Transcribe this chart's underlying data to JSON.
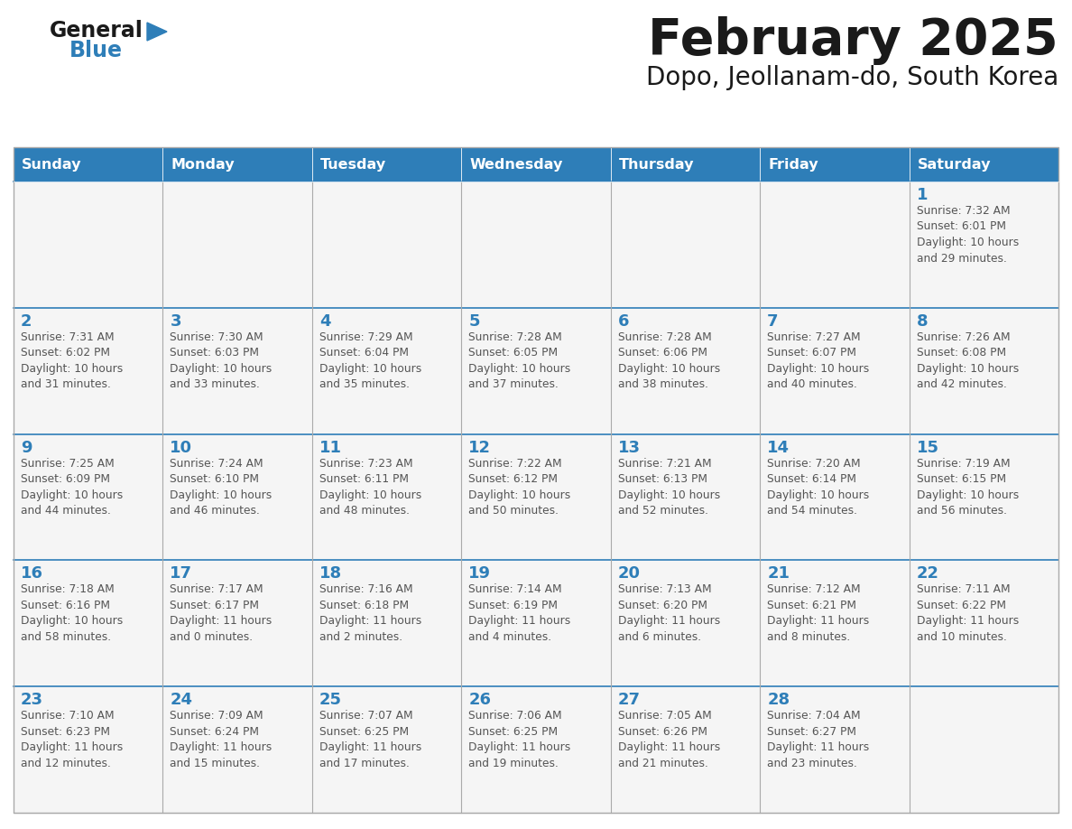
{
  "title": "February 2025",
  "subtitle": "Dopo, Jeollanam-do, South Korea",
  "days_of_week": [
    "Sunday",
    "Monday",
    "Tuesday",
    "Wednesday",
    "Thursday",
    "Friday",
    "Saturday"
  ],
  "header_bg": "#2E7EB8",
  "header_text": "#FFFFFF",
  "cell_bg": "#F5F5F5",
  "cell_bg_row1": "#EBEBEB",
  "border_color": "#AAAAAA",
  "sep_line_color": "#2E7EB8",
  "day_number_color": "#2E7EB8",
  "text_color": "#555555",
  "title_color": "#1A1A1A",
  "logo_text1_color": "#1A1A1A",
  "logo_text2_color": "#2E7EB8",
  "logo_triangle_color": "#2E7EB8",
  "calendar_data": [
    [
      null,
      null,
      null,
      null,
      null,
      null,
      {
        "day": "1",
        "sunrise": "7:32 AM",
        "sunset": "6:01 PM",
        "daylight": "10 hours\nand 29 minutes."
      }
    ],
    [
      {
        "day": "2",
        "sunrise": "7:31 AM",
        "sunset": "6:02 PM",
        "daylight": "10 hours\nand 31 minutes."
      },
      {
        "day": "3",
        "sunrise": "7:30 AM",
        "sunset": "6:03 PM",
        "daylight": "10 hours\nand 33 minutes."
      },
      {
        "day": "4",
        "sunrise": "7:29 AM",
        "sunset": "6:04 PM",
        "daylight": "10 hours\nand 35 minutes."
      },
      {
        "day": "5",
        "sunrise": "7:28 AM",
        "sunset": "6:05 PM",
        "daylight": "10 hours\nand 37 minutes."
      },
      {
        "day": "6",
        "sunrise": "7:28 AM",
        "sunset": "6:06 PM",
        "daylight": "10 hours\nand 38 minutes."
      },
      {
        "day": "7",
        "sunrise": "7:27 AM",
        "sunset": "6:07 PM",
        "daylight": "10 hours\nand 40 minutes."
      },
      {
        "day": "8",
        "sunrise": "7:26 AM",
        "sunset": "6:08 PM",
        "daylight": "10 hours\nand 42 minutes."
      }
    ],
    [
      {
        "day": "9",
        "sunrise": "7:25 AM",
        "sunset": "6:09 PM",
        "daylight": "10 hours\nand 44 minutes."
      },
      {
        "day": "10",
        "sunrise": "7:24 AM",
        "sunset": "6:10 PM",
        "daylight": "10 hours\nand 46 minutes."
      },
      {
        "day": "11",
        "sunrise": "7:23 AM",
        "sunset": "6:11 PM",
        "daylight": "10 hours\nand 48 minutes."
      },
      {
        "day": "12",
        "sunrise": "7:22 AM",
        "sunset": "6:12 PM",
        "daylight": "10 hours\nand 50 minutes."
      },
      {
        "day": "13",
        "sunrise": "7:21 AM",
        "sunset": "6:13 PM",
        "daylight": "10 hours\nand 52 minutes."
      },
      {
        "day": "14",
        "sunrise": "7:20 AM",
        "sunset": "6:14 PM",
        "daylight": "10 hours\nand 54 minutes."
      },
      {
        "day": "15",
        "sunrise": "7:19 AM",
        "sunset": "6:15 PM",
        "daylight": "10 hours\nand 56 minutes."
      }
    ],
    [
      {
        "day": "16",
        "sunrise": "7:18 AM",
        "sunset": "6:16 PM",
        "daylight": "10 hours\nand 58 minutes."
      },
      {
        "day": "17",
        "sunrise": "7:17 AM",
        "sunset": "6:17 PM",
        "daylight": "11 hours\nand 0 minutes."
      },
      {
        "day": "18",
        "sunrise": "7:16 AM",
        "sunset": "6:18 PM",
        "daylight": "11 hours\nand 2 minutes."
      },
      {
        "day": "19",
        "sunrise": "7:14 AM",
        "sunset": "6:19 PM",
        "daylight": "11 hours\nand 4 minutes."
      },
      {
        "day": "20",
        "sunrise": "7:13 AM",
        "sunset": "6:20 PM",
        "daylight": "11 hours\nand 6 minutes."
      },
      {
        "day": "21",
        "sunrise": "7:12 AM",
        "sunset": "6:21 PM",
        "daylight": "11 hours\nand 8 minutes."
      },
      {
        "day": "22",
        "sunrise": "7:11 AM",
        "sunset": "6:22 PM",
        "daylight": "11 hours\nand 10 minutes."
      }
    ],
    [
      {
        "day": "23",
        "sunrise": "7:10 AM",
        "sunset": "6:23 PM",
        "daylight": "11 hours\nand 12 minutes."
      },
      {
        "day": "24",
        "sunrise": "7:09 AM",
        "sunset": "6:24 PM",
        "daylight": "11 hours\nand 15 minutes."
      },
      {
        "day": "25",
        "sunrise": "7:07 AM",
        "sunset": "6:25 PM",
        "daylight": "11 hours\nand 17 minutes."
      },
      {
        "day": "26",
        "sunrise": "7:06 AM",
        "sunset": "6:25 PM",
        "daylight": "11 hours\nand 19 minutes."
      },
      {
        "day": "27",
        "sunrise": "7:05 AM",
        "sunset": "6:26 PM",
        "daylight": "11 hours\nand 21 minutes."
      },
      {
        "day": "28",
        "sunrise": "7:04 AM",
        "sunset": "6:27 PM",
        "daylight": "11 hours\nand 23 minutes."
      },
      null
    ]
  ]
}
